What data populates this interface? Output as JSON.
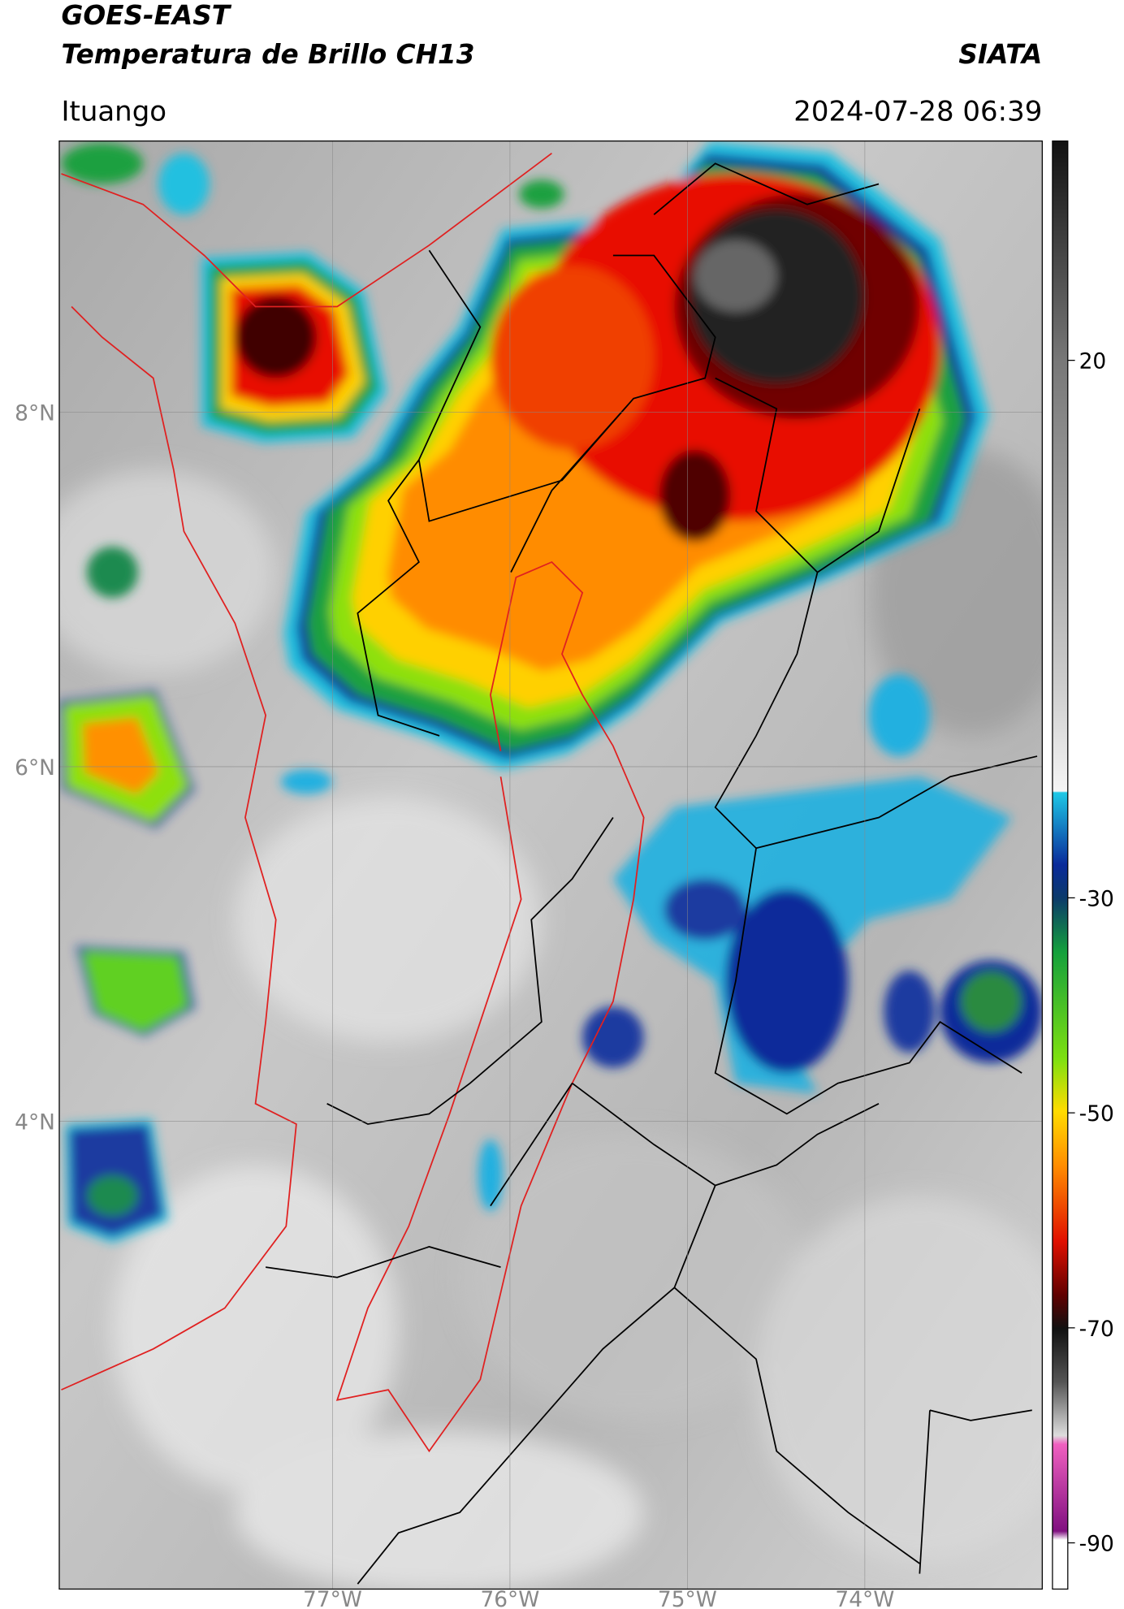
{
  "header": {
    "title": "GOES-EAST",
    "subtitle": "Temperatura de Brillo CH13",
    "source": "SIATA",
    "location": "Ituango",
    "datetime": "2024-07-28 06:39"
  },
  "map": {
    "lonlim": [
      -78.54,
      -73.0
    ],
    "latlim": [
      1.36,
      9.53
    ],
    "lon_ticks": [
      {
        "value": -77,
        "label": "77°W"
      },
      {
        "value": -76,
        "label": "76°W"
      },
      {
        "value": -75,
        "label": "75°W"
      },
      {
        "value": -74,
        "label": "74°W"
      }
    ],
    "lat_ticks": [
      {
        "value": 8,
        "label": "8°N"
      },
      {
        "value": 6,
        "label": "6°N"
      },
      {
        "value": 4,
        "label": "4°N"
      }
    ],
    "grid": true
  },
  "colorbar": {
    "lim": [
      -94.3,
      40.4
    ],
    "ticks": [
      20,
      -30,
      -50,
      -70,
      -90
    ]
  }
}
